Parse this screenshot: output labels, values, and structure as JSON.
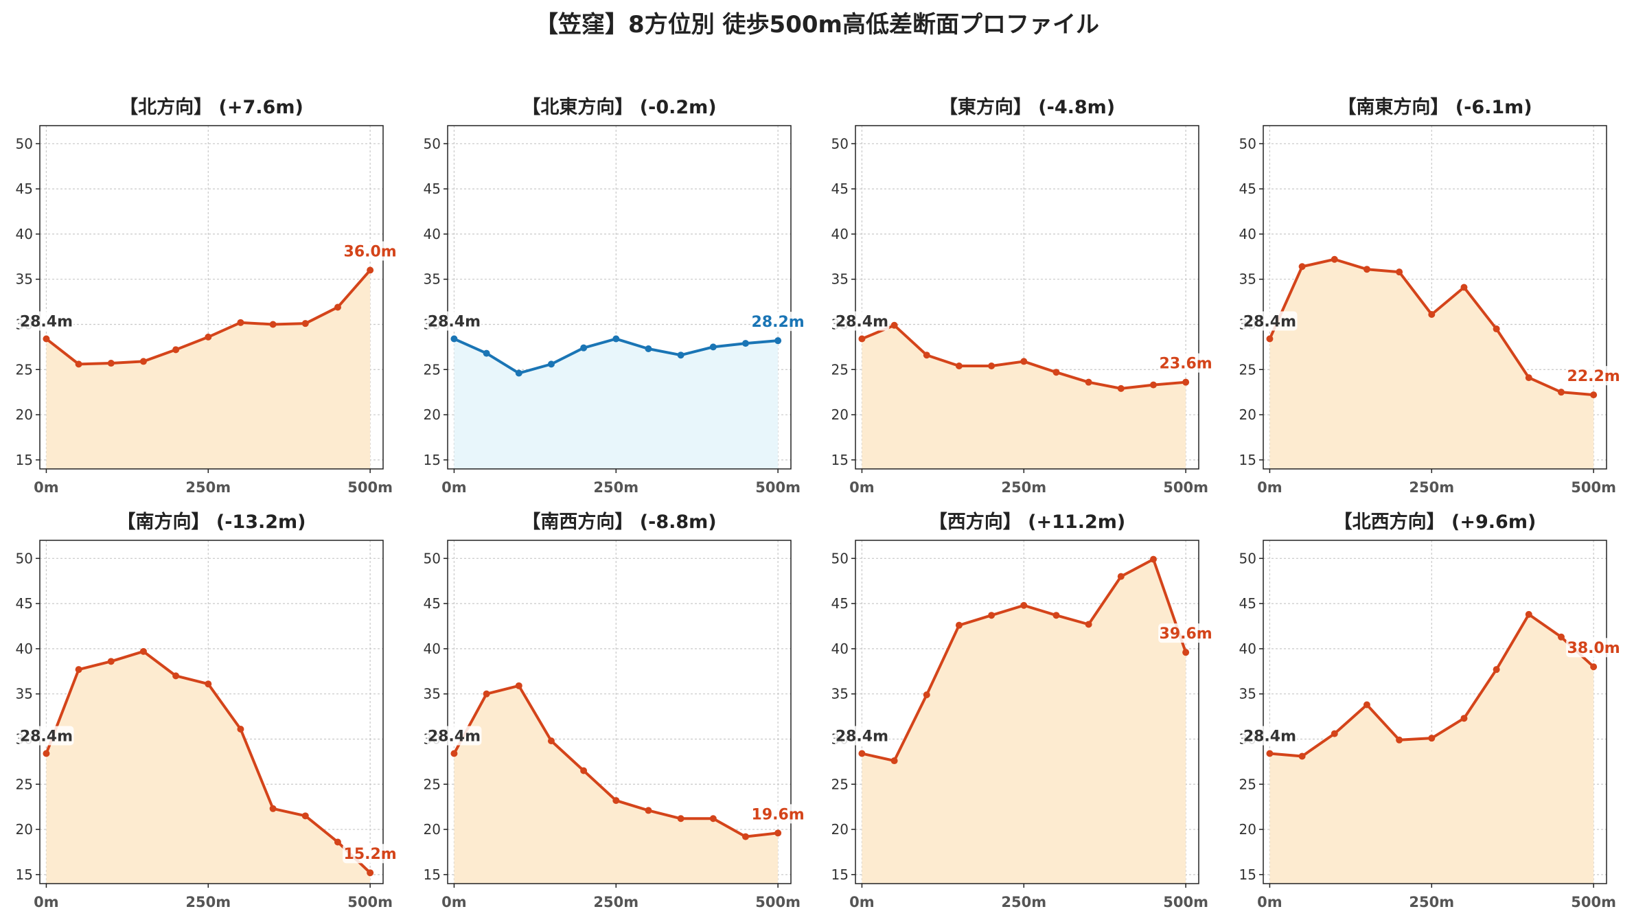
{
  "title": "【笠窪】8方位別 徒歩500m高低差断面プロファイル",
  "colors": {
    "rise_line": "#d4441a",
    "rise_fill": "#fdebd0",
    "flat_line": "#1a75b5",
    "flat_fill": "#e8f6fb",
    "start_label": "#333333",
    "grid": "#c8c8c8"
  },
  "chart_data": [
    {
      "type": "line",
      "title": "【北方向】 (+7.6m)",
      "style": "rise",
      "x": [
        0,
        50,
        100,
        150,
        200,
        250,
        300,
        350,
        400,
        450,
        500
      ],
      "y": [
        28.4,
        25.6,
        25.7,
        25.9,
        27.2,
        28.6,
        30.2,
        30.0,
        30.1,
        31.9,
        36.0
      ],
      "start_label": "28.4m",
      "end_label": "36.0m"
    },
    {
      "type": "line",
      "title": "【北東方向】 (-0.2m)",
      "style": "flat",
      "x": [
        0,
        50,
        100,
        150,
        200,
        250,
        300,
        350,
        400,
        450,
        500
      ],
      "y": [
        28.4,
        26.8,
        24.6,
        25.6,
        27.4,
        28.4,
        27.3,
        26.6,
        27.5,
        27.9,
        28.2
      ],
      "start_label": "28.4m",
      "end_label": "28.2m"
    },
    {
      "type": "line",
      "title": "【東方向】 (-4.8m)",
      "style": "rise",
      "x": [
        0,
        50,
        100,
        150,
        200,
        250,
        300,
        350,
        400,
        450,
        500
      ],
      "y": [
        28.4,
        29.9,
        26.6,
        25.4,
        25.4,
        25.9,
        24.7,
        23.6,
        22.9,
        23.3,
        23.6
      ],
      "start_label": "28.4m",
      "end_label": "23.6m"
    },
    {
      "type": "line",
      "title": "【南東方向】 (-6.1m)",
      "style": "rise",
      "x": [
        0,
        50,
        100,
        150,
        200,
        250,
        300,
        350,
        400,
        450,
        500
      ],
      "y": [
        28.4,
        36.4,
        37.2,
        36.1,
        35.8,
        31.1,
        34.1,
        29.5,
        24.1,
        22.5,
        22.2
      ],
      "start_label": "28.4m",
      "end_label": "22.2m"
    },
    {
      "type": "line",
      "title": "【南方向】 (-13.2m)",
      "style": "rise",
      "x": [
        0,
        50,
        100,
        150,
        200,
        250,
        300,
        350,
        400,
        450,
        500
      ],
      "y": [
        28.4,
        37.7,
        38.6,
        39.7,
        37.0,
        36.1,
        31.1,
        22.3,
        21.5,
        18.6,
        15.2
      ],
      "start_label": "28.4m",
      "end_label": "15.2m"
    },
    {
      "type": "line",
      "title": "【南西方向】 (-8.8m)",
      "style": "rise",
      "x": [
        0,
        50,
        100,
        150,
        200,
        250,
        300,
        350,
        400,
        450,
        500
      ],
      "y": [
        28.4,
        35.0,
        35.9,
        29.8,
        26.5,
        23.2,
        22.1,
        21.2,
        21.2,
        19.2,
        19.6
      ],
      "start_label": "28.4m",
      "end_label": "19.6m"
    },
    {
      "type": "line",
      "title": "【西方向】 (+11.2m)",
      "style": "rise",
      "x": [
        0,
        50,
        100,
        150,
        200,
        250,
        300,
        350,
        400,
        450,
        500
      ],
      "y": [
        28.4,
        27.6,
        34.9,
        42.6,
        43.7,
        44.8,
        43.7,
        42.7,
        48.0,
        49.9,
        39.6
      ],
      "start_label": "28.4m",
      "end_label": "39.6m"
    },
    {
      "type": "line",
      "title": "【北西方向】 (+9.6m)",
      "style": "rise",
      "x": [
        0,
        50,
        100,
        150,
        200,
        250,
        300,
        350,
        400,
        450,
        500
      ],
      "y": [
        28.4,
        28.1,
        30.6,
        33.8,
        29.9,
        30.1,
        32.3,
        37.7,
        43.8,
        41.3,
        38.0
      ],
      "start_label": "28.4m",
      "end_label": "38.0m"
    }
  ],
  "axes": {
    "ylim": [
      14,
      52
    ],
    "yticks": [
      15,
      20,
      25,
      30,
      35,
      40,
      45,
      50
    ],
    "xlim": [
      -10,
      520
    ],
    "xticks": [
      0,
      250,
      500
    ],
    "xtick_labels": [
      "0m",
      "250m",
      "500m"
    ],
    "grid": true
  }
}
